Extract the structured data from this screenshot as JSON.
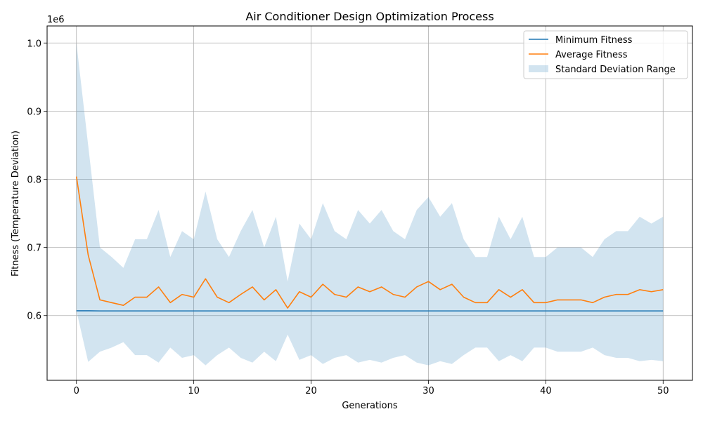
{
  "chart_data": {
    "type": "line",
    "title": "Air Conditioner Design Optimization Process",
    "xlabel": "Generations",
    "ylabel": "Fitness (Temperature Deviation)",
    "y_offset_label": "1e6",
    "xlim": [
      -2.5,
      52.5
    ],
    "ylim": [
      505000,
      1025000
    ],
    "x_ticks": [
      0,
      10,
      20,
      30,
      40,
      50
    ],
    "y_ticks": [
      0.6,
      0.7,
      0.8,
      0.9,
      1.0
    ],
    "y_tick_labels": [
      "0.6",
      "0.7",
      "0.8",
      "0.9",
      "1.0"
    ],
    "grid": true,
    "legend_position": "upper right",
    "x": [
      0,
      1,
      2,
      3,
      4,
      5,
      6,
      7,
      8,
      9,
      10,
      11,
      12,
      13,
      14,
      15,
      16,
      17,
      18,
      19,
      20,
      21,
      22,
      23,
      24,
      25,
      26,
      27,
      28,
      29,
      30,
      31,
      32,
      33,
      34,
      35,
      36,
      37,
      38,
      39,
      40,
      41,
      42,
      43,
      44,
      45,
      46,
      47,
      48,
      49,
      50
    ],
    "series": [
      {
        "name": "Minimum Fitness",
        "color": "#1f77b4",
        "values": [
          607000,
          607000,
          606800,
          606800,
          606800,
          606800,
          606800,
          606800,
          606800,
          606800,
          606800,
          606800,
          606800,
          606800,
          606800,
          606800,
          606800,
          606800,
          606800,
          606800,
          606800,
          606800,
          606800,
          606800,
          606800,
          606800,
          606800,
          606800,
          606800,
          606800,
          606800,
          606800,
          606800,
          606800,
          606800,
          606800,
          606800,
          606800,
          606800,
          606800,
          606800,
          606800,
          606800,
          606800,
          606800,
          606800,
          606800,
          606800,
          606800,
          606800,
          606800
        ]
      },
      {
        "name": "Average Fitness",
        "color": "#ff7f0e",
        "values": [
          804000,
          689000,
          623000,
          619000,
          615000,
          627000,
          627000,
          642000,
          619000,
          631000,
          627000,
          654000,
          627000,
          619000,
          631000,
          642000,
          623000,
          638000,
          611000,
          635000,
          627000,
          646000,
          631000,
          627000,
          642000,
          635000,
          642000,
          631000,
          627000,
          642000,
          650000,
          638000,
          646000,
          627000,
          619000,
          619000,
          638000,
          627000,
          638000,
          619000,
          619000,
          623000,
          623000,
          623000,
          619000,
          627000,
          631000,
          631000,
          638000,
          635000,
          638000
        ]
      }
    ],
    "band": {
      "name": "Standard Deviation Range",
      "color": "#1f77b4",
      "opacity": 0.2,
      "upper": [
        1000000,
        850000,
        700000,
        686000,
        670000,
        712000,
        712000,
        755000,
        686000,
        724000,
        712000,
        782000,
        712000,
        686000,
        724000,
        755000,
        700000,
        745000,
        650000,
        735000,
        712000,
        765000,
        724000,
        712000,
        755000,
        735000,
        755000,
        724000,
        712000,
        755000,
        774000,
        745000,
        765000,
        712000,
        686000,
        686000,
        745000,
        712000,
        745000,
        686000,
        686000,
        700000,
        700000,
        700000,
        686000,
        712000,
        724000,
        724000,
        745000,
        735000,
        745000
      ],
      "lower": [
        607000,
        532000,
        547000,
        553000,
        561000,
        542000,
        542000,
        531000,
        553000,
        538000,
        542000,
        527000,
        542000,
        553000,
        538000,
        531000,
        547000,
        533000,
        572000,
        535000,
        542000,
        529000,
        538000,
        542000,
        531000,
        535000,
        531000,
        538000,
        542000,
        531000,
        527000,
        533000,
        529000,
        542000,
        553000,
        553000,
        533000,
        542000,
        533000,
        553000,
        553000,
        547000,
        547000,
        547000,
        553000,
        542000,
        538000,
        538000,
        533000,
        535000,
        533000
      ]
    }
  }
}
